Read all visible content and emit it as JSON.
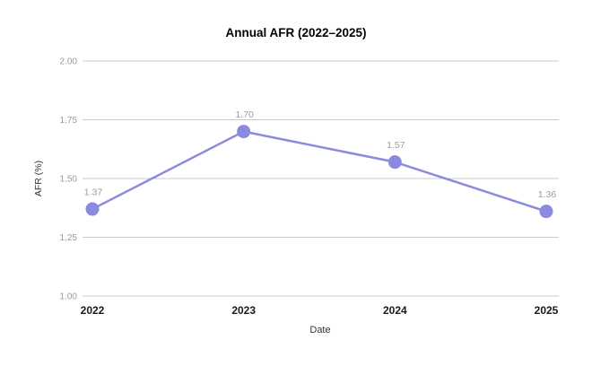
{
  "chart_data": {
    "type": "line",
    "title": "Annual AFR (2022–2025)",
    "xlabel": "Date",
    "ylabel": "AFR (%)",
    "categories": [
      "2022",
      "2023",
      "2024",
      "2025"
    ],
    "series": [
      {
        "name": "AFR",
        "values": [
          1.37,
          1.7,
          1.57,
          1.36
        ]
      }
    ],
    "point_labels": [
      "1.37",
      "1.70",
      "1.57",
      "1.36"
    ],
    "yticks": [
      2.0,
      1.75,
      1.5,
      1.25,
      1.0
    ],
    "ytick_labels": [
      "2.00",
      "1.75",
      "1.50",
      "1.25",
      "1.00"
    ],
    "ylim": [
      1.0,
      2.0
    ],
    "grid": "horizontal",
    "legend": "none",
    "colors": {
      "series": "#8a8ade",
      "gridline": "#c9c9d9",
      "muted_label": "#9b9b9b",
      "axis_label": "#333333",
      "category_label": "#1a1a1a",
      "title": "#000000",
      "background": "#ffffff"
    }
  }
}
